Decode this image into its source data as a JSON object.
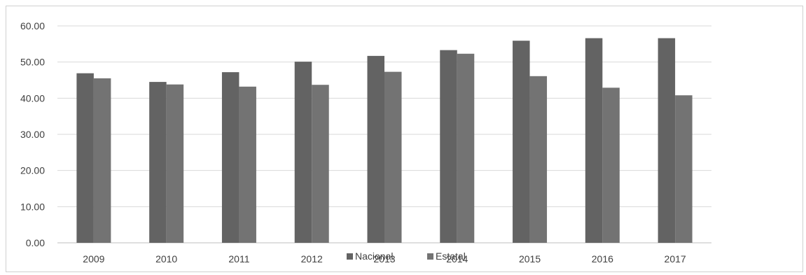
{
  "chart_data": {
    "type": "bar",
    "title": "",
    "xlabel": "",
    "ylabel": "",
    "categories": [
      "2009",
      "2010",
      "2011",
      "2012",
      "2013",
      "2014",
      "2015",
      "2016",
      "2017"
    ],
    "series": [
      {
        "name": "Nacional",
        "color": "#636363",
        "values": [
          46.9,
          44.5,
          47.2,
          50.1,
          51.7,
          53.3,
          55.9,
          56.6,
          56.6
        ]
      },
      {
        "name": "Estatal",
        "color": "#737373",
        "values": [
          45.5,
          43.8,
          43.2,
          43.7,
          47.3,
          52.3,
          46.1,
          42.9,
          40.8
        ]
      }
    ],
    "ylim": [
      0,
      60
    ],
    "yticks": [
      "0.00",
      "10.00",
      "20.00",
      "30.00",
      "40.00",
      "50.00",
      "60.00"
    ],
    "grid": true,
    "legend": "bottom-center"
  }
}
